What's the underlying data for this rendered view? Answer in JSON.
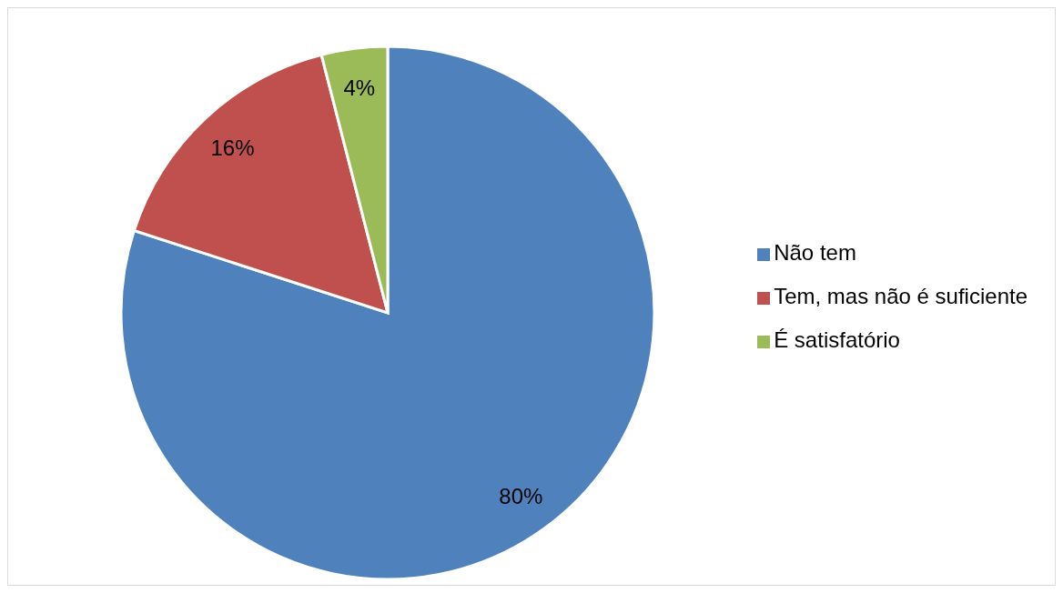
{
  "chart_data": {
    "type": "pie",
    "categories": [
      "Não tem",
      "Tem, mas não é suficiente",
      "É satisfatório"
    ],
    "values": [
      80,
      16,
      4
    ],
    "colors": [
      "#4f81bd",
      "#c0504d",
      "#9bbb59"
    ],
    "value_labels": [
      "80%",
      "16%",
      "4%"
    ],
    "legend": "right"
  }
}
